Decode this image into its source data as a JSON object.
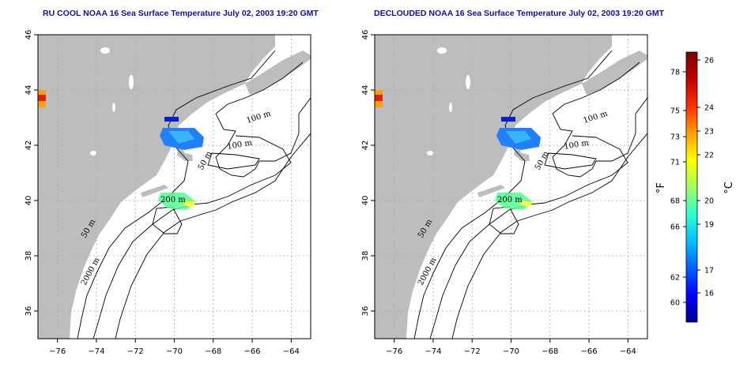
{
  "maps": [
    {
      "title": "RU COOL NOAA 16 Sea Surface Temperature July 02, 2003 19:20 GMT"
    },
    {
      "title": "DECLOUDED NOAA 16 Sea Surface Temperature July 02, 2003 19:20 GMT"
    }
  ],
  "axes": {
    "x_ticks": [
      -76,
      -74,
      -72,
      -70,
      -68,
      -66,
      -64
    ],
    "y_ticks": [
      36,
      38,
      40,
      42,
      44,
      46
    ],
    "lon_range": [
      -77,
      -63
    ],
    "lat_range": [
      35,
      46
    ]
  },
  "contour_labels": [
    "100 m",
    "100 m",
    "50 m",
    "200 m",
    "50 m",
    "2000 m"
  ],
  "colorbar": {
    "fahrenheit_label": "°F",
    "celsius_label": "°C",
    "fahrenheit_ticks": [
      "78",
      "75",
      "73",
      "71",
      "68",
      "66",
      "62",
      "60"
    ],
    "celsius_ticks": [
      "26",
      "24",
      "23",
      "22",
      "20",
      "19",
      "17",
      "16"
    ],
    "colors": [
      "#000090",
      "#0000ff",
      "#0060ff",
      "#00c0ff",
      "#30ffd0",
      "#a0ff60",
      "#ffff00",
      "#ffa000",
      "#ff3000",
      "#c00000",
      "#800000"
    ]
  },
  "style": {
    "title_color": "#1010a0",
    "land_color": "#bdbdbd",
    "grid_color": "#aaaaaa"
  }
}
